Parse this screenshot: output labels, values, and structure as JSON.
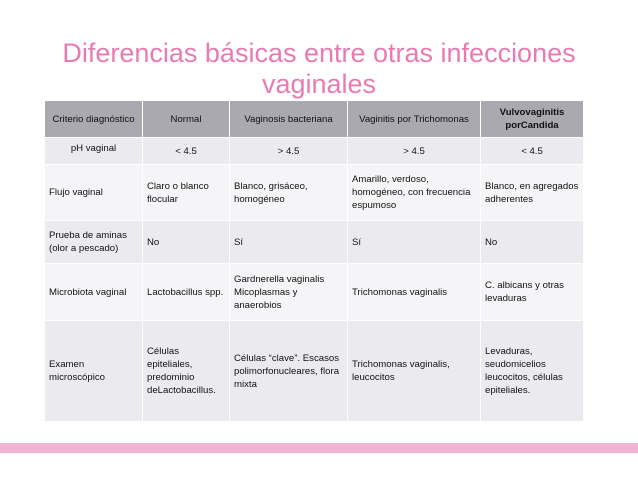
{
  "slide": {
    "title": "Diferencias básicas entre otras infecciones vaginales"
  },
  "table": {
    "headers": [
      "Criterio diagnóstico",
      "Normal",
      "Vaginosis bacteriana",
      "Vaginitis por Trichomonas",
      "Vulvovaginitis porCandida"
    ],
    "rows": [
      [
        "pH vaginal",
        "< 4.5",
        "> 4.5",
        "> 4.5",
        "< 4.5"
      ],
      [
        "Flujo vaginal",
        "Claro o blanco flocular",
        "Blanco, grisáceo, homogéneo",
        "Amarillo, verdoso, homogéneo, con frecuencia espumoso",
        "Blanco, en agregados adherentes"
      ],
      [
        "Prueba de aminas (olor a pescado)",
        "No",
        "Sí",
        "Sí",
        "No"
      ],
      [
        "Microbiota vaginal",
        "Lactobacillus spp.",
        "Gardnerella vaginalis Micoplasmas y anaerobios",
        "Trichomonas vaginalis",
        "C. albicans y otras levaduras"
      ],
      [
        "Examen microscópico",
        "Células epiteliales, predominio deLactobacillus.",
        "Células “clave”. Escasos polimorfonucleares, flora mixta",
        "Trichomonas vaginalis, leucocitos",
        "Levaduras, seudomicelios leucocitos, células epiteliales."
      ]
    ]
  },
  "colors": {
    "title": "#e97ab3",
    "header_bg": "#a9a9af",
    "row_bg_dark": "#ebebef",
    "row_bg_light": "#f5f5f7",
    "accent_bar": "#f0b3d1"
  }
}
